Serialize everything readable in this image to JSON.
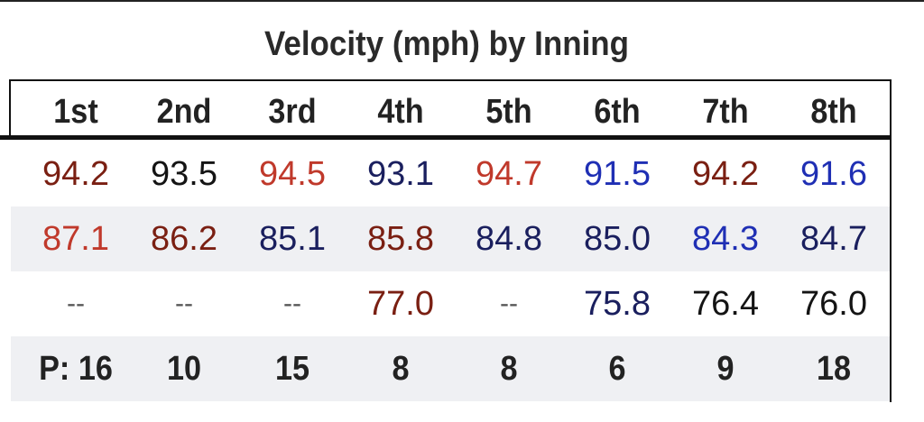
{
  "title": "Velocity (mph) by Inning",
  "header": [
    "1st",
    "2nd",
    "3rd",
    "4th",
    "5th",
    "6th",
    "7th",
    "8th"
  ],
  "rows": [
    {
      "values": [
        "94.2",
        "93.5",
        "94.5",
        "93.1",
        "94.7",
        "91.5",
        "94.2",
        "91.6"
      ],
      "colors": [
        "#7a1f12",
        "#141414",
        "#c0392b",
        "#1a1f5e",
        "#c0392b",
        "#1f2fb4",
        "#7a1f12",
        "#1f2fb4"
      ]
    },
    {
      "values": [
        "87.1",
        "86.2",
        "85.1",
        "85.8",
        "84.8",
        "85.0",
        "84.3",
        "84.7"
      ],
      "colors": [
        "#c0392b",
        "#7a1f12",
        "#1a1f5e",
        "#7a1f12",
        "#1a1f5e",
        "#1a1f5e",
        "#1f2fb4",
        "#1a1f5e"
      ]
    },
    {
      "values": [
        "--",
        "--",
        "--",
        "77.0",
        "--",
        "75.8",
        "76.4",
        "76.0"
      ],
      "colors": [
        "#555555",
        "#555555",
        "#555555",
        "#7a1f12",
        "#555555",
        "#1a1f5e",
        "#141414",
        "#141414"
      ]
    }
  ],
  "pitches": [
    "P: 16",
    "10",
    "15",
    "8",
    "8",
    "6",
    "9",
    "18"
  ]
}
